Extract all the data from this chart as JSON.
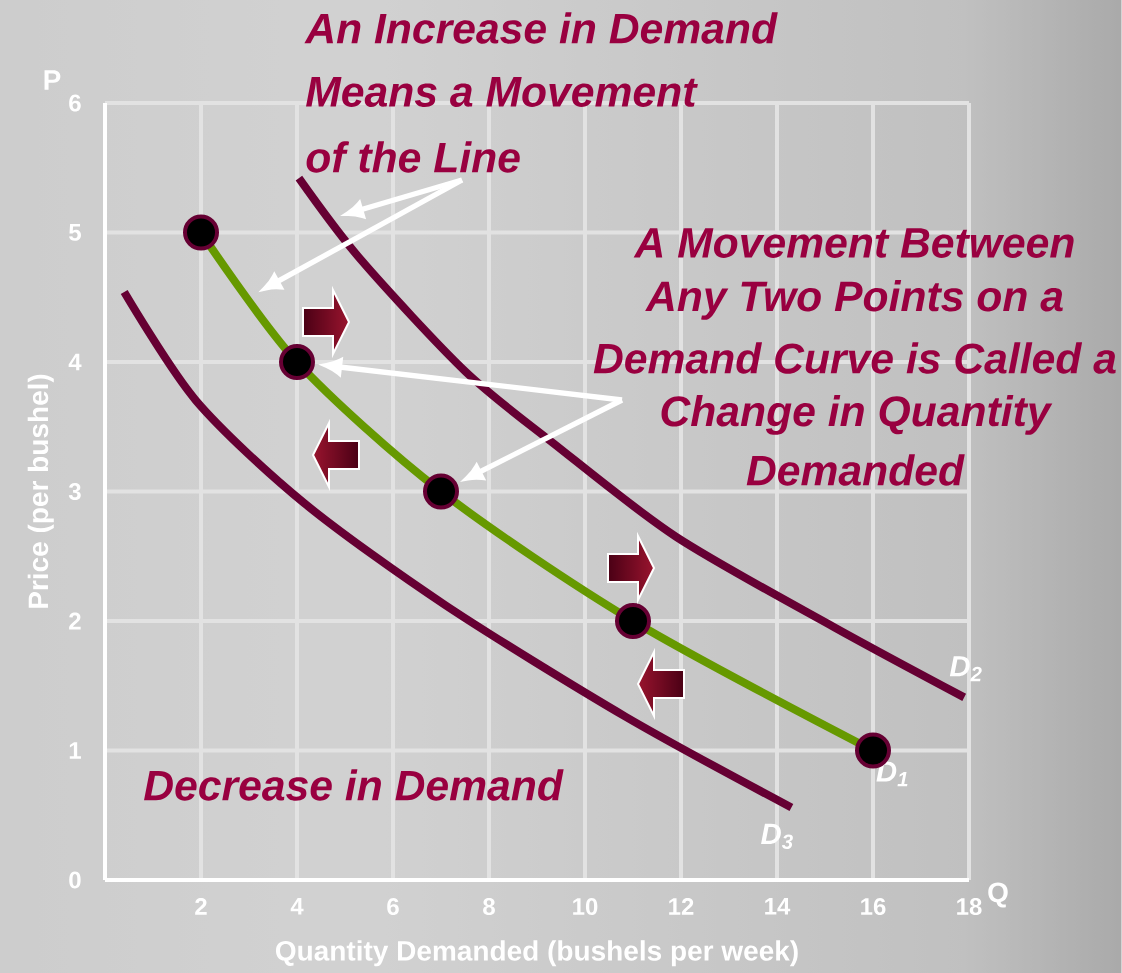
{
  "chart_data": {
    "type": "line",
    "xlabel": "Quantity Demanded (bushels per week)",
    "ylabel": "Price (per bushel)",
    "x": [
      2,
      4,
      7,
      11,
      16
    ],
    "series": [
      {
        "name": "D$_{1}$",
        "color": "#669900",
        "values": [
          5,
          4,
          3,
          2,
          1
        ],
        "marker": "circle"
      },
      {
        "name": "D$_{2}$",
        "color": "#660033",
        "x": [
          4.04,
          5.33,
          7.5,
          9.35,
          11.9,
          15.2,
          17.9
        ],
        "values": [
          5.42,
          4.79,
          3.93,
          3.37,
          2.65,
          1.95,
          1.41
        ]
      },
      {
        "name": "D$_{3}$",
        "color": "#660033",
        "x": [
          0.4,
          1.9,
          4.15,
          7.1,
          10.85,
          14.3
        ],
        "values": [
          4.54,
          3.7,
          2.91,
          2.12,
          1.26,
          0.56
        ]
      }
    ],
    "xlim": [
      0,
      18
    ],
    "ylim": [
      0,
      6
    ],
    "xticks": [
      2,
      4,
      6,
      8,
      10,
      12,
      14,
      16,
      18
    ],
    "yticks": [
      0,
      1,
      2,
      3,
      4,
      5,
      6
    ],
    "grid": true,
    "annotations": [
      "P",
      "Q",
      "An Increase in Demand",
      "Means a Movement",
      "of the Line",
      "A Movement Between",
      "Any Two Points on a",
      "Demand Curve is Called a",
      "Change in Quantity",
      "Demanded",
      "Decrease in Demand"
    ]
  }
}
